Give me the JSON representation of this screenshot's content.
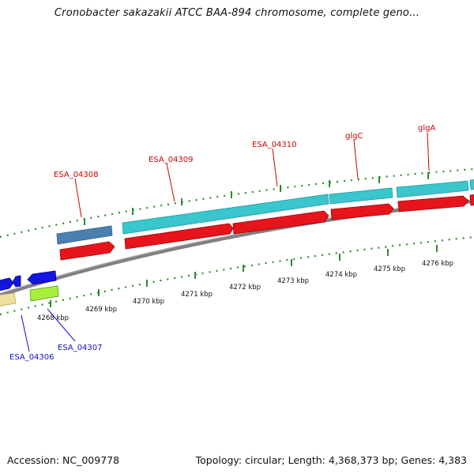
{
  "map": {
    "title": "Cronobacter sakazakii ATCC BAA-894 chromosome, complete geno...",
    "accession": "Accession: NC_009778",
    "summary": "Topology: circular; Length: 4,368,373 bp; Genes: 4,383"
  },
  "colors": {
    "backbone": "#8c8c8c",
    "tick": "#2e8b2e",
    "forward_cds": "#39c6cc",
    "forward_cds_alt": "#4a7fb0",
    "reverse_cds": "#e8141c",
    "blue_gene": "#1515e0",
    "yellow_gene": "#f0e0a0",
    "green_gene": "#a6f03a",
    "label_red": "#cc0000",
    "label_blue": "#1010cc"
  },
  "ruler": {
    "labels": [
      "4268 kbp",
      "4269 kbp",
      "4270 kbp",
      "4271 kbp",
      "4272 kbp",
      "4273 kbp",
      "4274 kbp",
      "4275 kbp",
      "4276 kbp"
    ]
  },
  "gene_labels": {
    "esa_04308": "ESA_04308",
    "esa_04309": "ESA_04309",
    "esa_04310": "ESA_04310",
    "glgc": "glgC",
    "glga": "glgA",
    "esa_04306": "ESA_04306",
    "esa_04307": "ESA_04307"
  }
}
